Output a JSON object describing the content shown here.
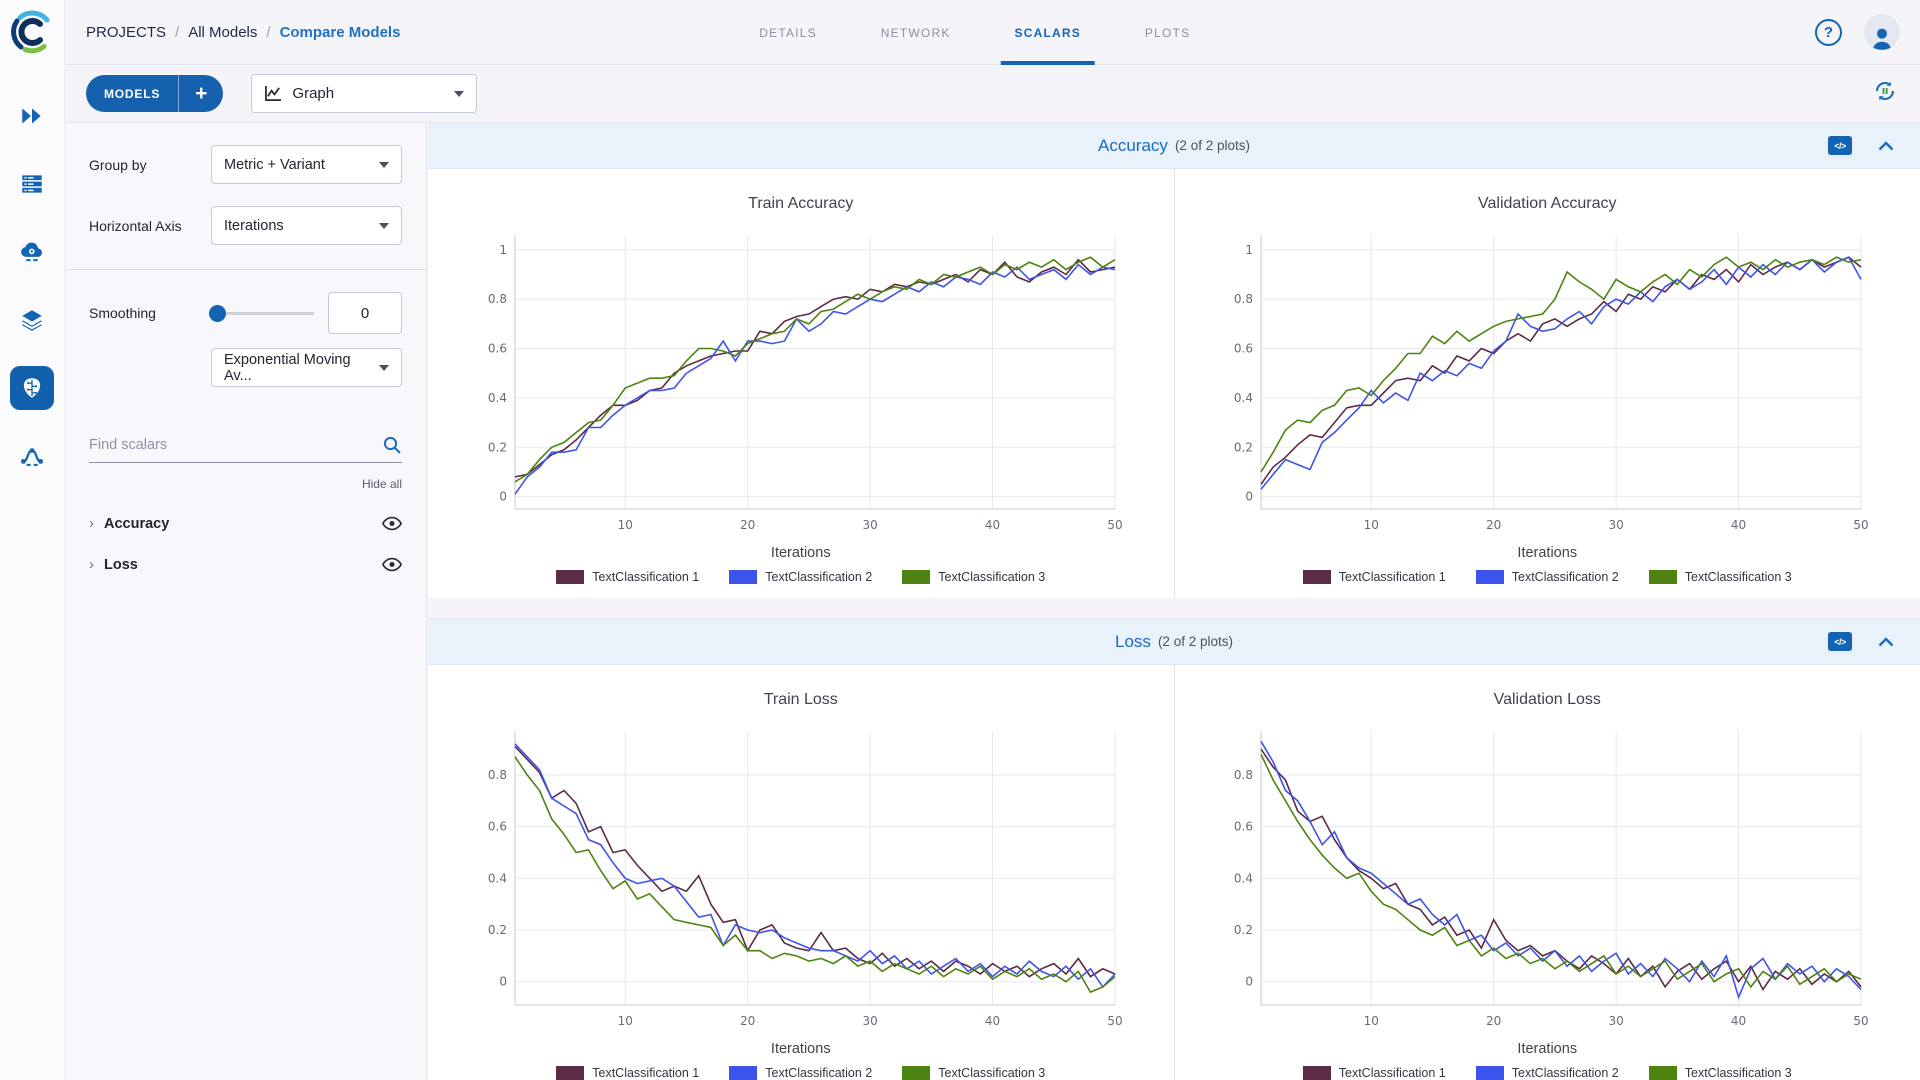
{
  "breadcrumb": {
    "root": "PROJECTS",
    "sep": "/",
    "parent": "All Models",
    "current": "Compare Models"
  },
  "header": {
    "tabs": [
      {
        "label": "DETAILS",
        "active": false
      },
      {
        "label": "NETWORK",
        "active": false
      },
      {
        "label": "SCALARS",
        "active": true
      },
      {
        "label": "PLOTS",
        "active": false
      }
    ],
    "help_label": "?"
  },
  "toolbar": {
    "models_button": "MODELS",
    "add_button": "+",
    "view_selector": "Graph"
  },
  "nav": {
    "icons": [
      "double-chevron-icon",
      "server-queue-icon",
      "cloud-gear-icon",
      "layers-icon",
      "brain-icon",
      "pipeline-icon"
    ]
  },
  "controls": {
    "group_by_label": "Group by",
    "group_by_value": "Metric + Variant",
    "horizontal_axis_label": "Horizontal Axis",
    "horizontal_axis_value": "Iterations",
    "smoothing_label": "Smoothing",
    "smoothing_value": "0",
    "smoothing_type": "Exponential Moving Av...",
    "search_placeholder": "Find scalars",
    "hide_all": "Hide all",
    "scalar_groups": [
      {
        "label": "Accuracy"
      },
      {
        "label": "Loss"
      }
    ]
  },
  "sections": [
    {
      "title": "Accuracy",
      "count": "(2 of 2 plots)",
      "code_icon": "</>"
    },
    {
      "title": "Loss",
      "count": "(2 of 2 plots)",
      "code_icon": "</>"
    }
  ],
  "colors": {
    "accent": "#1464b4",
    "series1": "#5c2b45",
    "series2": "#3d54ec",
    "series3": "#4e8311"
  },
  "chart_data": [
    {
      "type": "line",
      "title": "Train Accuracy",
      "xlabel": "Iterations",
      "xlim": [
        1,
        50
      ],
      "ylim": [
        -0.05,
        1.06
      ],
      "xticks": [
        10,
        20,
        30,
        40,
        50
      ],
      "yticks": [
        0,
        0.2,
        0.4,
        0.6,
        0.8,
        1
      ],
      "grid": true,
      "legend_position": "bottom",
      "series": [
        {
          "name": "TextClassification 1",
          "color": "#5c2b45",
          "values": [
            0.08,
            0.09,
            0.13,
            0.17,
            0.19,
            0.23,
            0.28,
            0.33,
            0.37,
            0.37,
            0.39,
            0.43,
            0.44,
            0.5,
            0.53,
            0.55,
            0.57,
            0.58,
            0.59,
            0.59,
            0.67,
            0.66,
            0.71,
            0.73,
            0.74,
            0.77,
            0.8,
            0.81,
            0.8,
            0.84,
            0.83,
            0.86,
            0.85,
            0.87,
            0.86,
            0.88,
            0.9,
            0.87,
            0.92,
            0.9,
            0.95,
            0.89,
            0.87,
            0.91,
            0.93,
            0.9,
            0.96,
            0.91,
            0.92,
            0.93
          ]
        },
        {
          "name": "TextClassification 2",
          "color": "#3d54ec",
          "values": [
            0.01,
            0.08,
            0.12,
            0.18,
            0.18,
            0.19,
            0.28,
            0.28,
            0.33,
            0.37,
            0.4,
            0.43,
            0.43,
            0.44,
            0.5,
            0.53,
            0.56,
            0.63,
            0.55,
            0.63,
            0.63,
            0.62,
            0.63,
            0.72,
            0.67,
            0.7,
            0.75,
            0.74,
            0.77,
            0.8,
            0.79,
            0.82,
            0.85,
            0.83,
            0.87,
            0.85,
            0.89,
            0.88,
            0.86,
            0.91,
            0.89,
            0.93,
            0.88,
            0.9,
            0.92,
            0.88,
            0.94,
            0.9,
            0.93,
            0.92
          ]
        },
        {
          "name": "TextClassification 3",
          "color": "#4e8311",
          "values": [
            0.06,
            0.09,
            0.15,
            0.2,
            0.22,
            0.26,
            0.3,
            0.31,
            0.37,
            0.44,
            0.46,
            0.48,
            0.48,
            0.49,
            0.55,
            0.6,
            0.6,
            0.59,
            0.57,
            0.62,
            0.64,
            0.66,
            0.67,
            0.72,
            0.7,
            0.75,
            0.76,
            0.79,
            0.82,
            0.8,
            0.83,
            0.85,
            0.84,
            0.88,
            0.86,
            0.9,
            0.89,
            0.91,
            0.93,
            0.9,
            0.94,
            0.92,
            0.95,
            0.93,
            0.96,
            0.92,
            0.95,
            0.97,
            0.93,
            0.96
          ]
        }
      ]
    },
    {
      "type": "line",
      "title": "Validation Accuracy",
      "xlabel": "Iterations",
      "xlim": [
        1,
        50
      ],
      "ylim": [
        -0.05,
        1.06
      ],
      "xticks": [
        10,
        20,
        30,
        40,
        50
      ],
      "yticks": [
        0,
        0.2,
        0.4,
        0.6,
        0.8,
        1
      ],
      "grid": true,
      "legend_position": "bottom",
      "series": [
        {
          "name": "TextClassification 1",
          "color": "#5c2b45",
          "values": [
            0.05,
            0.12,
            0.16,
            0.21,
            0.25,
            0.24,
            0.3,
            0.36,
            0.37,
            0.37,
            0.42,
            0.47,
            0.48,
            0.47,
            0.53,
            0.5,
            0.57,
            0.55,
            0.6,
            0.58,
            0.63,
            0.66,
            0.63,
            0.7,
            0.72,
            0.69,
            0.72,
            0.74,
            0.79,
            0.75,
            0.82,
            0.8,
            0.85,
            0.83,
            0.88,
            0.84,
            0.9,
            0.88,
            0.92,
            0.87,
            0.94,
            0.9,
            0.93,
            0.95,
            0.92,
            0.96,
            0.93,
            0.95,
            0.97,
            0.93
          ]
        },
        {
          "name": "TextClassification 2",
          "color": "#3d54ec",
          "values": [
            0.03,
            0.09,
            0.15,
            0.13,
            0.11,
            0.22,
            0.26,
            0.31,
            0.36,
            0.43,
            0.38,
            0.42,
            0.39,
            0.5,
            0.47,
            0.51,
            0.49,
            0.54,
            0.52,
            0.59,
            0.63,
            0.74,
            0.69,
            0.67,
            0.68,
            0.72,
            0.75,
            0.7,
            0.77,
            0.8,
            0.78,
            0.83,
            0.79,
            0.85,
            0.88,
            0.84,
            0.87,
            0.92,
            0.86,
            0.93,
            0.89,
            0.94,
            0.9,
            0.95,
            0.92,
            0.96,
            0.91,
            0.95,
            0.97,
            0.88
          ]
        },
        {
          "name": "TextClassification 3",
          "color": "#4e8311",
          "values": [
            0.1,
            0.18,
            0.27,
            0.31,
            0.3,
            0.35,
            0.37,
            0.43,
            0.44,
            0.41,
            0.47,
            0.52,
            0.58,
            0.58,
            0.65,
            0.62,
            0.67,
            0.63,
            0.66,
            0.69,
            0.71,
            0.72,
            0.73,
            0.74,
            0.8,
            0.91,
            0.87,
            0.84,
            0.8,
            0.88,
            0.85,
            0.83,
            0.87,
            0.9,
            0.86,
            0.92,
            0.89,
            0.94,
            0.97,
            0.93,
            0.95,
            0.92,
            0.96,
            0.93,
            0.95,
            0.96,
            0.94,
            0.97,
            0.95,
            0.96
          ]
        }
      ]
    },
    {
      "type": "line",
      "title": "Train Loss",
      "xlabel": "Iterations",
      "xlim": [
        1,
        50
      ],
      "ylim": [
        -0.09,
        0.97
      ],
      "xticks": [
        10,
        20,
        30,
        40,
        50
      ],
      "yticks": [
        0,
        0.2,
        0.4,
        0.6,
        0.8
      ],
      "grid": true,
      "legend_position": "bottom",
      "series": [
        {
          "name": "TextClassification 1",
          "color": "#5c2b45",
          "values": [
            0.91,
            0.86,
            0.81,
            0.71,
            0.74,
            0.69,
            0.58,
            0.6,
            0.5,
            0.51,
            0.45,
            0.4,
            0.35,
            0.37,
            0.35,
            0.41,
            0.3,
            0.23,
            0.24,
            0.12,
            0.2,
            0.22,
            0.15,
            0.13,
            0.12,
            0.19,
            0.12,
            0.13,
            0.09,
            0.07,
            0.11,
            0.06,
            0.09,
            0.05,
            0.08,
            0.04,
            0.08,
            0.06,
            0.03,
            0.07,
            0.04,
            0.06,
            0.02,
            0.05,
            0.07,
            0.03,
            0.09,
            0.02,
            0.05,
            0.03
          ]
        },
        {
          "name": "TextClassification 2",
          "color": "#3d54ec",
          "values": [
            0.92,
            0.87,
            0.82,
            0.71,
            0.68,
            0.65,
            0.55,
            0.53,
            0.46,
            0.4,
            0.38,
            0.39,
            0.4,
            0.37,
            0.31,
            0.25,
            0.26,
            0.14,
            0.22,
            0.2,
            0.19,
            0.2,
            0.17,
            0.15,
            0.13,
            0.12,
            0.12,
            0.1,
            0.08,
            0.12,
            0.07,
            0.1,
            0.05,
            0.08,
            0.03,
            0.06,
            0.09,
            0.04,
            0.07,
            0.02,
            0.06,
            0.03,
            0.08,
            0.04,
            0.02,
            0.06,
            0.01,
            0.05,
            -0.02,
            0.03
          ]
        },
        {
          "name": "TextClassification 3",
          "color": "#4e8311",
          "values": [
            0.87,
            0.8,
            0.74,
            0.63,
            0.57,
            0.5,
            0.51,
            0.43,
            0.36,
            0.39,
            0.32,
            0.34,
            0.29,
            0.24,
            0.23,
            0.22,
            0.21,
            0.14,
            0.18,
            0.12,
            0.12,
            0.09,
            0.11,
            0.1,
            0.08,
            0.09,
            0.07,
            0.1,
            0.06,
            0.08,
            0.04,
            0.07,
            0.05,
            0.03,
            0.06,
            0.02,
            0.05,
            0.03,
            0.06,
            0.01,
            0.04,
            0.02,
            0.05,
            0.01,
            0.03,
            0.0,
            0.04,
            -0.04,
            -0.02,
            0.02
          ]
        }
      ]
    },
    {
      "type": "line",
      "title": "Validation Loss",
      "xlabel": "Iterations",
      "xlim": [
        1,
        50
      ],
      "ylim": [
        -0.09,
        0.97
      ],
      "xticks": [
        10,
        20,
        30,
        40,
        50
      ],
      "yticks": [
        0,
        0.2,
        0.4,
        0.6,
        0.8
      ],
      "grid": true,
      "legend_position": "bottom",
      "series": [
        {
          "name": "TextClassification 1",
          "color": "#5c2b45",
          "values": [
            0.9,
            0.83,
            0.78,
            0.66,
            0.62,
            0.64,
            0.55,
            0.48,
            0.43,
            0.4,
            0.36,
            0.38,
            0.3,
            0.28,
            0.22,
            0.25,
            0.18,
            0.2,
            0.13,
            0.24,
            0.16,
            0.12,
            0.14,
            0.1,
            0.12,
            0.08,
            0.05,
            0.1,
            0.07,
            0.03,
            0.09,
            0.02,
            0.06,
            -0.02,
            0.04,
            0.07,
            0.01,
            0.05,
            0.08,
            0.0,
            0.06,
            -0.03,
            0.04,
            0.01,
            0.05,
            -0.01,
            0.03,
            0.0,
            0.04,
            -0.02
          ]
        },
        {
          "name": "TextClassification 2",
          "color": "#3d54ec",
          "values": [
            0.93,
            0.85,
            0.74,
            0.7,
            0.62,
            0.53,
            0.58,
            0.48,
            0.44,
            0.42,
            0.38,
            0.34,
            0.3,
            0.32,
            0.26,
            0.22,
            0.26,
            0.16,
            0.18,
            0.12,
            0.15,
            0.1,
            0.13,
            0.08,
            0.12,
            0.06,
            0.1,
            0.04,
            0.08,
            0.11,
            0.03,
            0.07,
            0.02,
            0.09,
            0.05,
            0.0,
            0.08,
            0.02,
            0.1,
            -0.06,
            0.05,
            0.09,
            0.01,
            0.07,
            0.03,
            0.06,
            0.0,
            0.05,
            0.02,
            -0.03
          ]
        },
        {
          "name": "TextClassification 3",
          "color": "#4e8311",
          "values": [
            0.88,
            0.78,
            0.7,
            0.62,
            0.55,
            0.49,
            0.44,
            0.4,
            0.42,
            0.35,
            0.3,
            0.28,
            0.24,
            0.2,
            0.18,
            0.21,
            0.14,
            0.16,
            0.1,
            0.13,
            0.09,
            0.11,
            0.07,
            0.09,
            0.05,
            0.08,
            0.04,
            0.07,
            0.1,
            0.03,
            0.06,
            0.02,
            0.05,
            0.08,
            0.01,
            0.04,
            0.07,
            0.0,
            0.03,
            0.05,
            -0.02,
            0.04,
            0.01,
            0.06,
            -0.01,
            0.02,
            0.05,
            0.0,
            0.03,
            0.01
          ]
        }
      ]
    }
  ]
}
